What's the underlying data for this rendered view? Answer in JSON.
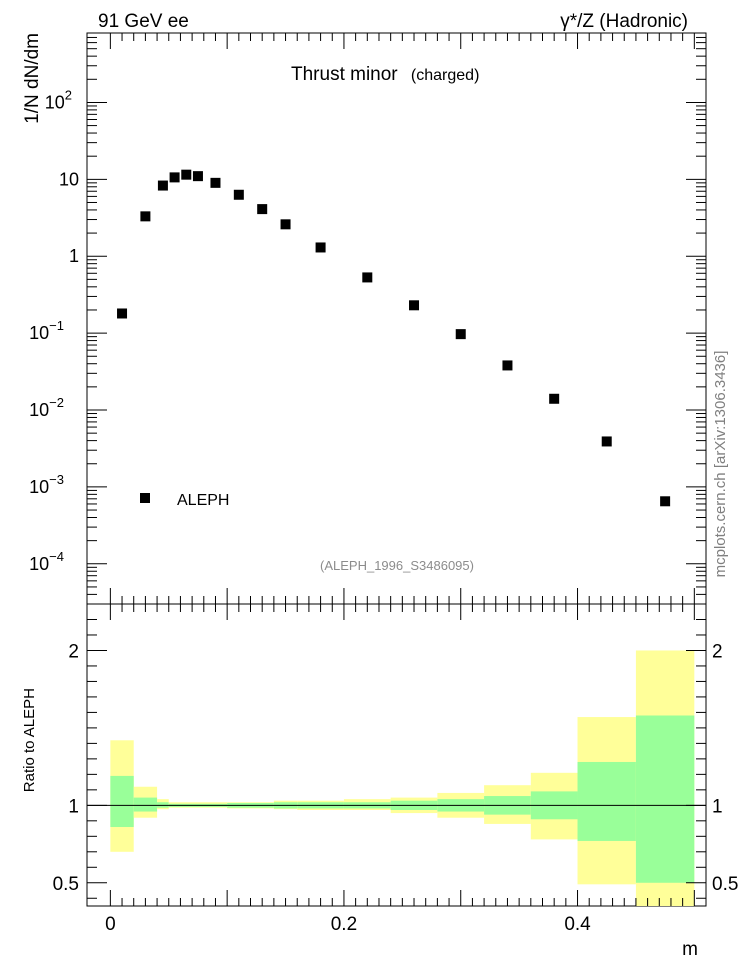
{
  "header": {
    "left": "91 GeV ee",
    "right": "γ*/Z (Hadronic)"
  },
  "chart_data": [
    {
      "type": "scatter",
      "title": "Thrust minor",
      "subtitle": "(charged)",
      "xlabel": "m",
      "ylabel": "1/N dN/dm",
      "ylog": true,
      "xlim": [
        -0.02,
        0.51
      ],
      "ylim": [
        3e-05,
        800
      ],
      "y_ticks": [
        {
          "v": 0.0001,
          "label": "10",
          "sup": "−4"
        },
        {
          "v": 0.001,
          "label": "10",
          "sup": "−3"
        },
        {
          "v": 0.01,
          "label": "10",
          "sup": "−2"
        },
        {
          "v": 0.1,
          "label": "10",
          "sup": "−1"
        },
        {
          "v": 1,
          "label": "1",
          "sup": ""
        },
        {
          "v": 10,
          "label": "10",
          "sup": ""
        },
        {
          "v": 100,
          "label": "10",
          "sup": "2"
        }
      ],
      "series": [
        {
          "name": "ALEPH",
          "color": "#000000",
          "x": [
            0.01,
            0.03,
            0.045,
            0.055,
            0.065,
            0.075,
            0.09,
            0.11,
            0.13,
            0.15,
            0.18,
            0.22,
            0.26,
            0.3,
            0.34,
            0.38,
            0.425,
            0.475
          ],
          "y": [
            0.18,
            3.3,
            8.3,
            10.6,
            11.5,
            11.0,
            9.0,
            6.3,
            4.1,
            2.6,
            1.3,
            0.53,
            0.23,
            0.097,
            0.038,
            0.014,
            0.0039,
            0.00065
          ]
        }
      ],
      "legend_position": "lower-left",
      "annotation": "(ALEPH_1996_S3486095)",
      "side_label": "mcplots.cern.ch [arXiv:1306.3436]"
    },
    {
      "type": "area",
      "ylabel": "Ratio to ALEPH",
      "xlabel": "m",
      "xlim": [
        -0.02,
        0.51
      ],
      "ylim": [
        0.35,
        2.3
      ],
      "x_ticks": [
        0,
        0.2,
        0.4
      ],
      "x_tick_labels": [
        "0",
        "0.2",
        "0.4"
      ],
      "y_ticks": [
        0.5,
        1,
        2
      ],
      "y_tick_labels": [
        "0.5",
        "1",
        "2"
      ],
      "colors": {
        "stat": "#99ff99",
        "total": "#ffff99"
      },
      "bins": [
        {
          "lo": 0.0,
          "hi": 0.02,
          "inner": [
            0.86,
            1.19
          ],
          "outer": [
            0.7,
            1.42
          ]
        },
        {
          "lo": 0.02,
          "hi": 0.04,
          "inner": [
            0.96,
            1.05
          ],
          "outer": [
            0.92,
            1.12
          ]
        },
        {
          "lo": 0.04,
          "hi": 0.05,
          "inner": [
            0.985,
            1.02
          ],
          "outer": [
            0.975,
            1.04
          ]
        },
        {
          "lo": 0.05,
          "hi": 0.1,
          "inner": [
            0.99,
            1.01
          ],
          "outer": [
            0.985,
            1.02
          ]
        },
        {
          "lo": 0.1,
          "hi": 0.14,
          "inner": [
            0.985,
            1.015
          ],
          "outer": [
            0.98,
            1.02
          ]
        },
        {
          "lo": 0.14,
          "hi": 0.16,
          "inner": [
            0.98,
            1.02
          ],
          "outer": [
            0.975,
            1.03
          ]
        },
        {
          "lo": 0.16,
          "hi": 0.2,
          "inner": [
            0.98,
            1.02
          ],
          "outer": [
            0.97,
            1.03
          ]
        },
        {
          "lo": 0.2,
          "hi": 0.24,
          "inner": [
            0.98,
            1.02
          ],
          "outer": [
            0.97,
            1.04
          ]
        },
        {
          "lo": 0.24,
          "hi": 0.28,
          "inner": [
            0.97,
            1.03
          ],
          "outer": [
            0.95,
            1.05
          ]
        },
        {
          "lo": 0.28,
          "hi": 0.32,
          "inner": [
            0.96,
            1.04
          ],
          "outer": [
            0.92,
            1.08
          ]
        },
        {
          "lo": 0.32,
          "hi": 0.36,
          "inner": [
            0.94,
            1.06
          ],
          "outer": [
            0.88,
            1.13
          ]
        },
        {
          "lo": 0.36,
          "hi": 0.4,
          "inner": [
            0.91,
            1.09
          ],
          "outer": [
            0.78,
            1.21
          ]
        },
        {
          "lo": 0.4,
          "hi": 0.45,
          "inner": [
            0.77,
            1.28
          ],
          "outer": [
            0.49,
            1.57
          ]
        },
        {
          "lo": 0.45,
          "hi": 0.5,
          "inner": [
            0.5,
            1.58
          ],
          "outer": [
            0.35,
            2.0
          ]
        }
      ]
    }
  ]
}
